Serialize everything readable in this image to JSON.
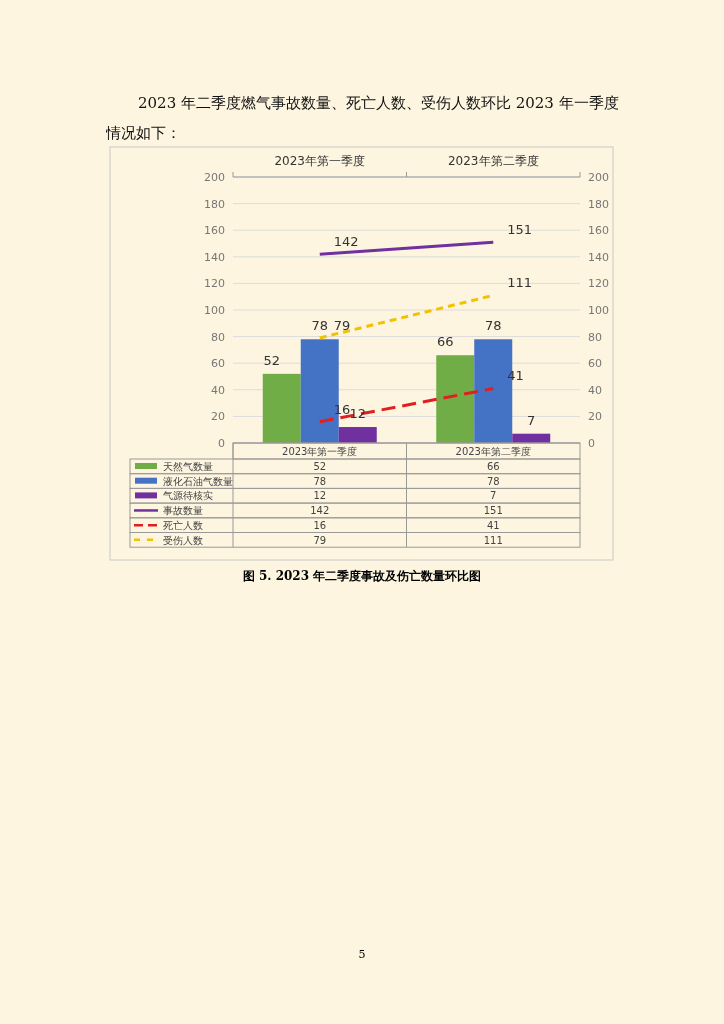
{
  "chart_data": {
    "type": "bar",
    "title": "图 5.  2023 年二季度事故及伤亡数量环比图",
    "annotations": [
      "2023 年二季度燃气事故数量、死亡人数、受伤人数环比 2023 年一季度情况如下：",
      "5"
    ],
    "categories": [
      "2023年第一季度",
      "2023年第二季度"
    ],
    "series": [
      {
        "name": "天然气数量",
        "color": "#70ad47",
        "values": [
          52,
          66
        ],
        "value_labels": [
          "52",
          "66"
        ]
      },
      {
        "name": "液化石油气数量",
        "color": "#4472c4",
        "values": [
          78,
          78
        ],
        "value_labels": [
          "78",
          "78"
        ]
      },
      {
        "name": "气源待核实",
        "color": "#7030a0",
        "values": [
          12,
          7
        ],
        "value_labels": [
          "12",
          "7"
        ]
      },
      {
        "name": "事故数量",
        "type": "line",
        "line_style": "solid",
        "color": "#7030a0",
        "values": [
          142,
          151
        ],
        "value_labels": [
          "142",
          "151"
        ]
      },
      {
        "name": "死亡人数",
        "type": "line",
        "line_style": "dashed",
        "color": "#e02020",
        "values": [
          16,
          41
        ],
        "value_labels": [
          "16",
          "41"
        ]
      },
      {
        "name": "受伤人数",
        "type": "line",
        "line_style": "dotted",
        "color": "#f2c200",
        "values": [
          79,
          111
        ],
        "value_labels": [
          "79",
          "111"
        ]
      }
    ],
    "ylim": [
      0,
      200
    ],
    "yticks": [
      0,
      20,
      40,
      60,
      80,
      100,
      120,
      140,
      160,
      180,
      200
    ],
    "y2lim": [
      0,
      200
    ],
    "y2ticks": [
      0,
      20,
      40,
      60,
      80,
      100,
      120,
      140,
      160,
      180,
      200
    ],
    "grid": "y",
    "data_labels": true,
    "legend": "bottom"
  }
}
